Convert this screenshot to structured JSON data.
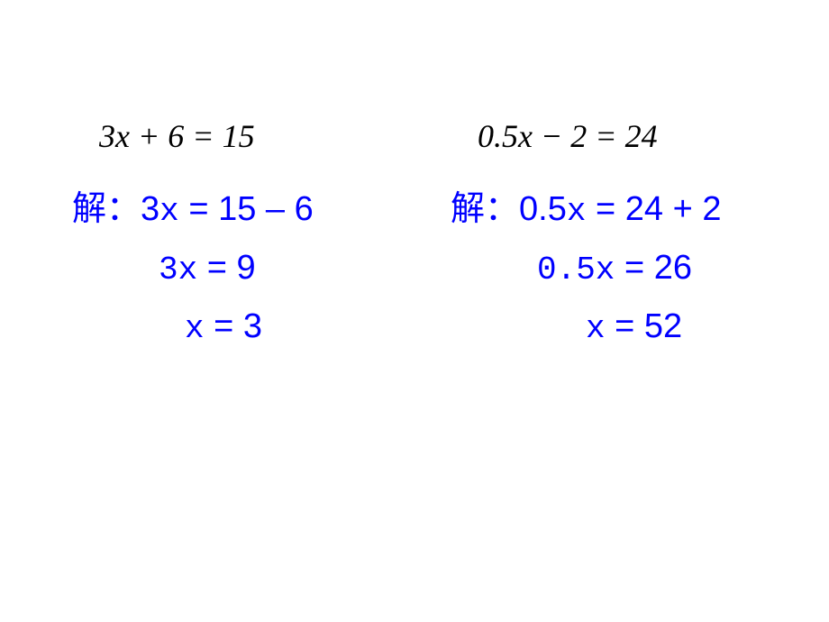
{
  "left": {
    "equation": "3x + 6 = 15",
    "jie": "解：",
    "step1_coef": "3",
    "step1_x": "x",
    "step1_rhs": " = 15 – 6",
    "step2_coef": "3x",
    "step2_rhs": " = 9",
    "step3_x": "x",
    "step3_rhs": " = 3"
  },
  "right": {
    "equation": "0.5x − 2 = 24",
    "jie": "解：",
    "step1_coef": "0.5",
    "step1_x": "x",
    "step1_rhs": " = 24 + 2",
    "step2_coef": "0.5x",
    "step2_rhs": " = 26",
    "step3_x": "x",
    "step3_rhs": " = 52"
  },
  "colors": {
    "solution_text": "#0000ff",
    "equation_text": "#000000",
    "background": "#ffffff"
  }
}
